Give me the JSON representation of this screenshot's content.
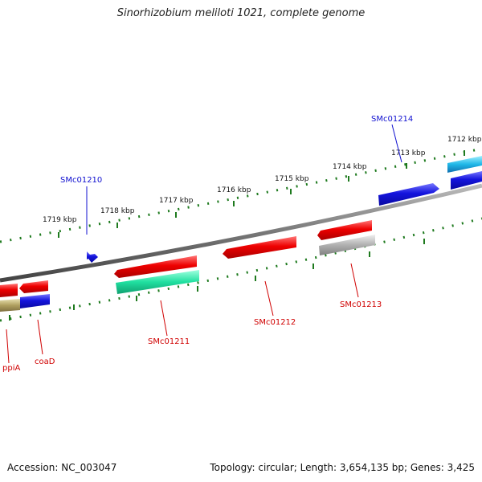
{
  "title": "Sinorhizobium meliloti 1021, complete genome",
  "footer": {
    "accession": "Accession: NC_003047",
    "summary": "Topology: circular; Length: 3,654,135 bp; Genes: 3,425"
  },
  "ruler_labels": [
    "1712 kbp",
    "1713 kbp",
    "1714 kbp",
    "1715 kbp",
    "1716 kbp",
    "1717 kbp",
    "1718 kbp",
    "1719 kbp"
  ],
  "gene_labels": {
    "top": [
      "SMc01214",
      "SMc01210"
    ],
    "bottom": [
      "SMc01213",
      "SMc01212",
      "SMc01211",
      "coaD",
      "ppiA"
    ]
  },
  "colors": {
    "tick": "#1e7a1e",
    "backbone": "#808080",
    "forward_gene": "#1010d0",
    "reverse_gene": "#e00000",
    "rna_feature": "#20e0a0",
    "pseudo_feature": "#b0b0b0",
    "other_feature": "#b0a060",
    "top_label": "#1010d0",
    "bottom_label": "#d00000"
  }
}
